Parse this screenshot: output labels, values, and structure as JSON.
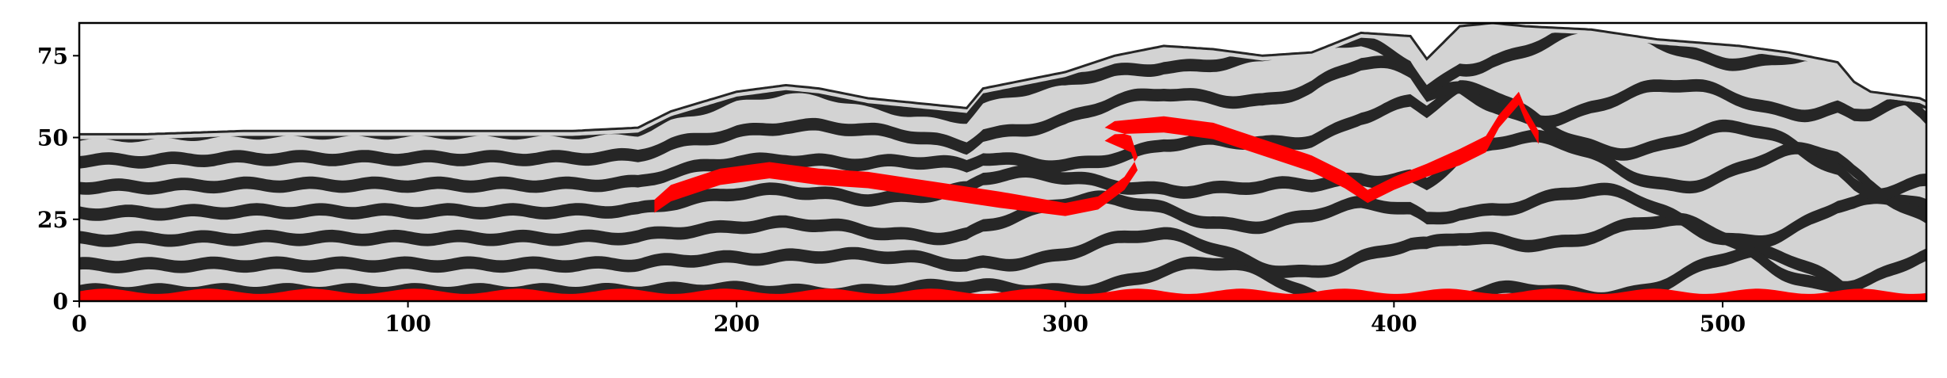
{
  "colors": {
    "background": "#ffffff",
    "layer_light": "#d3d3d3",
    "layer_dark": "#262626",
    "layer_red": "#ff0000",
    "frame": "#000000"
  },
  "chart_data": {
    "type": "heatmap",
    "title": "",
    "xlabel": "",
    "ylabel": "",
    "xlim": [
      0,
      562
    ],
    "ylim": [
      0,
      85
    ],
    "xticks": [
      0,
      100,
      200,
      300,
      400,
      500
    ],
    "yticks": [
      0,
      25,
      50,
      75
    ],
    "xtick_labels": [
      "0",
      "100",
      "200",
      "300",
      "400",
      "500"
    ],
    "ytick_labels": [
      "0",
      "25",
      "50",
      "75"
    ],
    "grid": false,
    "legend": "none",
    "categories": [
      "light layer",
      "dark layer",
      "red layer"
    ],
    "top_surface": {
      "x": [
        0,
        20,
        50,
        100,
        150,
        170,
        180,
        200,
        215,
        225,
        240,
        260,
        270,
        275,
        280,
        300,
        315,
        330,
        345,
        360,
        375,
        390,
        405,
        410,
        420,
        430,
        440,
        460,
        480,
        505,
        520,
        535,
        540,
        545,
        560,
        562
      ],
      "y": [
        51,
        51,
        52,
        52,
        52,
        53,
        58,
        64,
        66,
        65,
        62,
        60,
        59,
        65,
        66,
        70,
        75,
        78,
        77,
        75,
        76,
        82,
        81,
        74,
        84,
        85,
        84,
        83,
        80,
        78,
        76,
        73,
        67,
        64,
        62,
        61
      ]
    },
    "red_bands": [
      {
        "name": "lower red band",
        "x": [
          175,
          180,
          195,
          210,
          225,
          240,
          260,
          280,
          300,
          310,
          318,
          322,
          320,
          312,
          315,
          330,
          345,
          360,
          375,
          385,
          392,
          400,
          410,
          420,
          428,
          432,
          438,
          440,
          444
        ],
        "y": [
          29,
          33,
          38,
          40,
          38,
          37,
          34,
          31,
          28,
          30,
          36,
          42,
          48,
          51,
          53,
          54,
          52,
          47,
          42,
          37,
          32,
          36,
          40,
          44,
          48,
          55,
          62,
          57,
          50
        ],
        "thickness": [
          4,
          5,
          5,
          5,
          5,
          5,
          5,
          5,
          4,
          4,
          4,
          4,
          5,
          4,
          4,
          5,
          5,
          5,
          5,
          5,
          4,
          4,
          4,
          5,
          5,
          4,
          4,
          4,
          4
        ]
      }
    ],
    "basal_red_thickness": 3
  }
}
